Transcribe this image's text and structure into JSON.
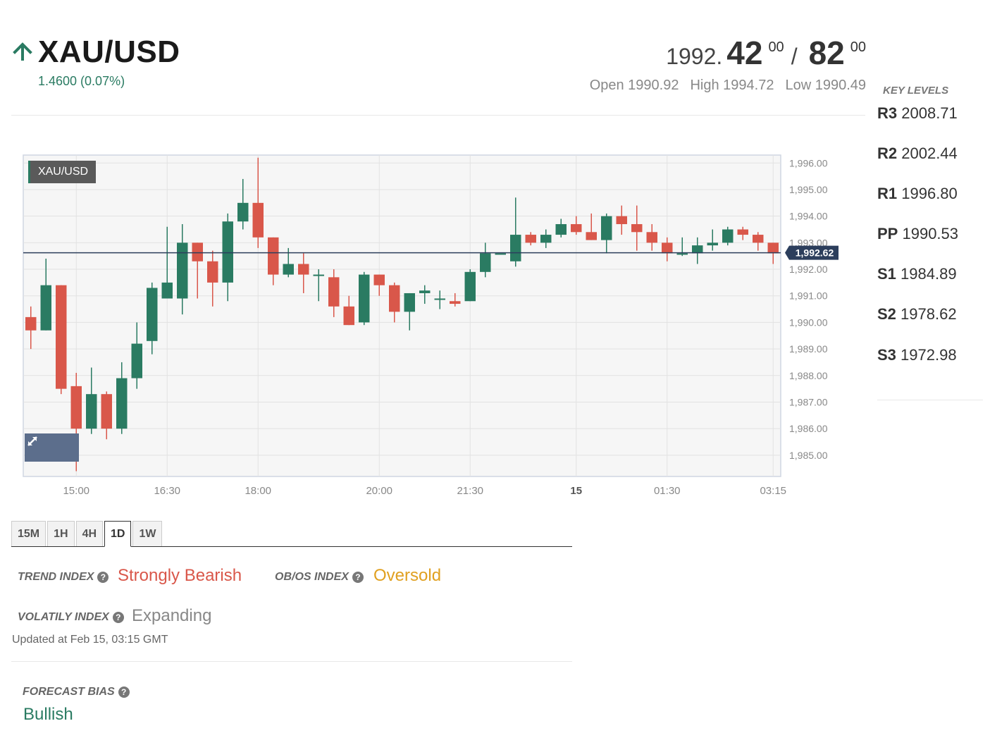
{
  "header": {
    "symbol": "XAU/USD",
    "change": "1.4600 (0.07%)",
    "bid": {
      "int": "1992.",
      "big": "42",
      "sup": "00"
    },
    "separator": "/",
    "ask": {
      "big": "82",
      "sup": "00"
    },
    "open": "Open 1990.92",
    "high": "High 1994.72",
    "low": "Low 1990.49"
  },
  "chart_data": {
    "type": "candlestick",
    "symbol_tag": "XAU/USD",
    "current_price_label": "1,992.62",
    "current_price": 1992.62,
    "ylim": [
      1984.2,
      1996.3
    ],
    "y_ticks": [
      "1,996.00",
      "1,995.00",
      "1,994.00",
      "1,993.00",
      "1,992.00",
      "1,991.00",
      "1,990.00",
      "1,989.00",
      "1,988.00",
      "1,987.00",
      "1,986.00",
      "1,985.00"
    ],
    "y_tick_values": [
      1996,
      1995,
      1994,
      1993,
      1992,
      1991,
      1990,
      1989,
      1988,
      1987,
      1986,
      1985
    ],
    "x_ticks": [
      {
        "label": "15:00",
        "index": 3
      },
      {
        "label": "16:30",
        "index": 9
      },
      {
        "label": "18:00",
        "index": 15
      },
      {
        "label": "20:00",
        "index": 23
      },
      {
        "label": "21:30",
        "index": 29
      },
      {
        "label": "15",
        "index": 36,
        "bold": true
      },
      {
        "label": "01:30",
        "index": 42
      },
      {
        "label": "03:15",
        "index": 49
      }
    ],
    "candles": [
      {
        "o": 1990.2,
        "h": 1990.6,
        "l": 1989.0,
        "c": 1989.7
      },
      {
        "o": 1989.7,
        "h": 1992.4,
        "l": 1989.7,
        "c": 1991.4
      },
      {
        "o": 1991.4,
        "h": 1991.4,
        "l": 1987.3,
        "c": 1987.5
      },
      {
        "o": 1987.6,
        "h": 1988.1,
        "l": 1984.4,
        "c": 1986.0
      },
      {
        "o": 1986.0,
        "h": 1988.3,
        "l": 1985.8,
        "c": 1987.3
      },
      {
        "o": 1987.3,
        "h": 1987.4,
        "l": 1985.6,
        "c": 1986.0
      },
      {
        "o": 1986.0,
        "h": 1988.5,
        "l": 1985.8,
        "c": 1987.9
      },
      {
        "o": 1987.9,
        "h": 1990.0,
        "l": 1987.5,
        "c": 1989.2
      },
      {
        "o": 1989.3,
        "h": 1991.5,
        "l": 1988.8,
        "c": 1991.3
      },
      {
        "o": 1990.9,
        "h": 1993.6,
        "l": 1990.9,
        "c": 1991.5
      },
      {
        "o": 1990.9,
        "h": 1993.7,
        "l": 1990.3,
        "c": 1993.0
      },
      {
        "o": 1993.0,
        "h": 1993.0,
        "l": 1990.9,
        "c": 1992.3
      },
      {
        "o": 1992.3,
        "h": 1992.7,
        "l": 1990.6,
        "c": 1991.5
      },
      {
        "o": 1991.5,
        "h": 1994.1,
        "l": 1990.8,
        "c": 1993.8
      },
      {
        "o": 1993.8,
        "h": 1995.4,
        "l": 1993.5,
        "c": 1994.5
      },
      {
        "o": 1994.5,
        "h": 1996.2,
        "l": 1992.8,
        "c": 1993.2
      },
      {
        "o": 1993.2,
        "h": 1993.2,
        "l": 1991.4,
        "c": 1991.8
      },
      {
        "o": 1991.8,
        "h": 1992.8,
        "l": 1991.7,
        "c": 1992.2
      },
      {
        "o": 1992.2,
        "h": 1992.6,
        "l": 1991.1,
        "c": 1991.8
      },
      {
        "o": 1991.8,
        "h": 1992.0,
        "l": 1990.8,
        "c": 1991.8
      },
      {
        "o": 1991.7,
        "h": 1992.0,
        "l": 1990.2,
        "c": 1990.6
      },
      {
        "o": 1990.6,
        "h": 1991.0,
        "l": 1989.9,
        "c": 1989.9
      },
      {
        "o": 1990.0,
        "h": 1991.9,
        "l": 1989.9,
        "c": 1991.8
      },
      {
        "o": 1991.8,
        "h": 1991.8,
        "l": 1991.0,
        "c": 1991.4
      },
      {
        "o": 1991.4,
        "h": 1991.5,
        "l": 1990.0,
        "c": 1990.4
      },
      {
        "o": 1990.4,
        "h": 1991.1,
        "l": 1989.7,
        "c": 1991.1
      },
      {
        "o": 1991.1,
        "h": 1991.4,
        "l": 1990.7,
        "c": 1991.2
      },
      {
        "o": 1990.9,
        "h": 1991.2,
        "l": 1990.5,
        "c": 1990.9
      },
      {
        "o": 1990.8,
        "h": 1991.1,
        "l": 1990.6,
        "c": 1990.7
      },
      {
        "o": 1990.8,
        "h": 1992.0,
        "l": 1990.8,
        "c": 1991.9
      },
      {
        "o": 1991.9,
        "h": 1993.0,
        "l": 1991.7,
        "c": 1992.6
      },
      {
        "o": 1992.6,
        "h": 1992.6,
        "l": 1992.6,
        "c": 1992.6
      },
      {
        "o": 1992.3,
        "h": 1994.7,
        "l": 1992.1,
        "c": 1993.3
      },
      {
        "o": 1993.3,
        "h": 1993.4,
        "l": 1992.9,
        "c": 1993.0
      },
      {
        "o": 1993.0,
        "h": 1993.5,
        "l": 1992.8,
        "c": 1993.3
      },
      {
        "o": 1993.3,
        "h": 1993.9,
        "l": 1993.2,
        "c": 1993.7
      },
      {
        "o": 1993.7,
        "h": 1994.0,
        "l": 1993.3,
        "c": 1993.4
      },
      {
        "o": 1993.4,
        "h": 1994.1,
        "l": 1993.1,
        "c": 1993.1
      },
      {
        "o": 1993.1,
        "h": 1994.1,
        "l": 1992.6,
        "c": 1994.0
      },
      {
        "o": 1994.0,
        "h": 1994.4,
        "l": 1993.3,
        "c": 1993.7
      },
      {
        "o": 1993.7,
        "h": 1994.4,
        "l": 1992.7,
        "c": 1993.4
      },
      {
        "o": 1993.4,
        "h": 1993.7,
        "l": 1992.7,
        "c": 1993.0
      },
      {
        "o": 1993.0,
        "h": 1993.2,
        "l": 1992.3,
        "c": 1992.6
      },
      {
        "o": 1992.6,
        "h": 1993.2,
        "l": 1992.5,
        "c": 1992.6
      },
      {
        "o": 1992.6,
        "h": 1993.2,
        "l": 1992.2,
        "c": 1992.9
      },
      {
        "o": 1992.9,
        "h": 1993.5,
        "l": 1992.7,
        "c": 1993.0
      },
      {
        "o": 1993.0,
        "h": 1993.6,
        "l": 1992.9,
        "c": 1993.5
      },
      {
        "o": 1993.5,
        "h": 1993.6,
        "l": 1993.1,
        "c": 1993.3
      },
      {
        "o": 1993.3,
        "h": 1993.4,
        "l": 1992.7,
        "c": 1993.0
      },
      {
        "o": 1993.0,
        "h": 1993.0,
        "l": 1992.2,
        "c": 1992.6
      }
    ]
  },
  "key_levels": {
    "title": "KEY LEVELS",
    "items": [
      {
        "name": "R3",
        "value": "2008.71"
      },
      {
        "name": "R2",
        "value": "2002.44"
      },
      {
        "name": "R1",
        "value": "1996.80"
      },
      {
        "name": "PP",
        "value": "1990.53"
      },
      {
        "name": "S1",
        "value": "1984.89"
      },
      {
        "name": "S2",
        "value": "1978.62"
      },
      {
        "name": "S3",
        "value": "1972.98"
      }
    ]
  },
  "timeframes": {
    "tabs": [
      "15M",
      "1H",
      "4H",
      "1D",
      "1W"
    ],
    "active": "1D"
  },
  "indicators": {
    "trend_label": "TREND INDEX",
    "trend_value": "Strongly Bearish",
    "obos_label": "OB/OS INDEX",
    "obos_value": "Oversold",
    "volatility_label": "VOLATILY INDEX",
    "volatility_value": "Expanding",
    "updated": "Updated at Feb 15, 03:15 GMT",
    "forecast_label": "FORECAST BIAS",
    "forecast_value": "Bullish"
  },
  "colors": {
    "bull": "#2a7b62",
    "bear": "#d9574a",
    "obos": "#e0a020",
    "neutral": "#888888",
    "price_line": "#2c3e5c"
  },
  "icons": {
    "trend": "arrow-up-icon",
    "help": "question-circle-icon",
    "expand": "expand-arrows-icon"
  }
}
